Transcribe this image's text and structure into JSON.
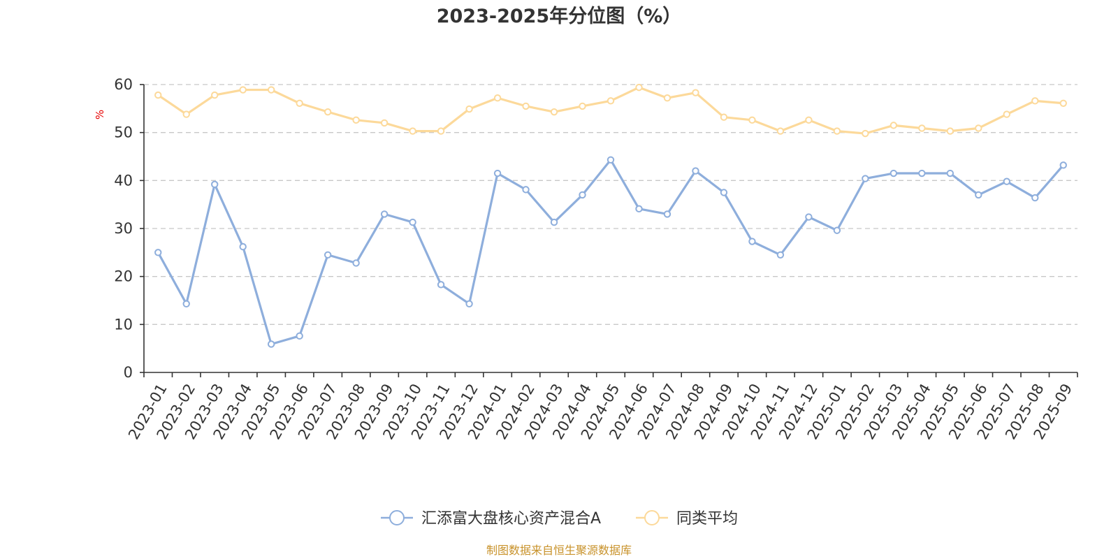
{
  "chart_data": {
    "type": "line",
    "title": "2023-2025年分位图（%）",
    "ylabel": "%",
    "xlabel": "",
    "ylim": [
      0,
      60
    ],
    "yticks": [
      0,
      10,
      20,
      30,
      40,
      50,
      60
    ],
    "grid": true,
    "legend_position": "bottom-center",
    "categories": [
      "2023-01",
      "2023-02",
      "2023-03",
      "2023-04",
      "2023-05",
      "2023-06",
      "2023-07",
      "2023-08",
      "2023-09",
      "2023-10",
      "2023-11",
      "2023-12",
      "2024-01",
      "2024-02",
      "2024-03",
      "2024-04",
      "2024-05",
      "2024-06",
      "2024-07",
      "2024-08",
      "2024-09",
      "2024-10",
      "2024-11",
      "2024-12",
      "2025-01",
      "2025-02",
      "2025-03",
      "2025-04",
      "2025-05",
      "2025-06",
      "2025-07",
      "2025-08",
      "2025-09"
    ],
    "series": [
      {
        "name": "汇添富大盘核心资产混合A",
        "color": "#8eaedc",
        "values": [
          25.0,
          14.3,
          39.2,
          26.2,
          5.9,
          7.6,
          24.5,
          22.8,
          33.0,
          31.3,
          18.3,
          14.3,
          41.5,
          38.1,
          31.3,
          37.0,
          44.3,
          34.1,
          33.0,
          42.0,
          37.5,
          27.3,
          24.5,
          32.4,
          29.6,
          40.4,
          41.5,
          41.5,
          41.5,
          37.0,
          39.8,
          36.4,
          43.2
        ]
      },
      {
        "name": "同类平均",
        "color": "#fcd99a",
        "values": [
          57.8,
          53.8,
          57.8,
          58.9,
          58.9,
          56.1,
          54.3,
          52.6,
          52.0,
          50.3,
          50.3,
          54.9,
          57.2,
          55.5,
          54.3,
          55.5,
          56.6,
          59.4,
          57.2,
          58.3,
          53.2,
          52.6,
          50.3,
          52.6,
          50.3,
          49.8,
          51.5,
          50.9,
          50.3,
          50.9,
          53.8,
          56.6,
          56.1
        ]
      }
    ]
  },
  "footer": {
    "source": "制图数据来自恒生聚源数据库"
  }
}
